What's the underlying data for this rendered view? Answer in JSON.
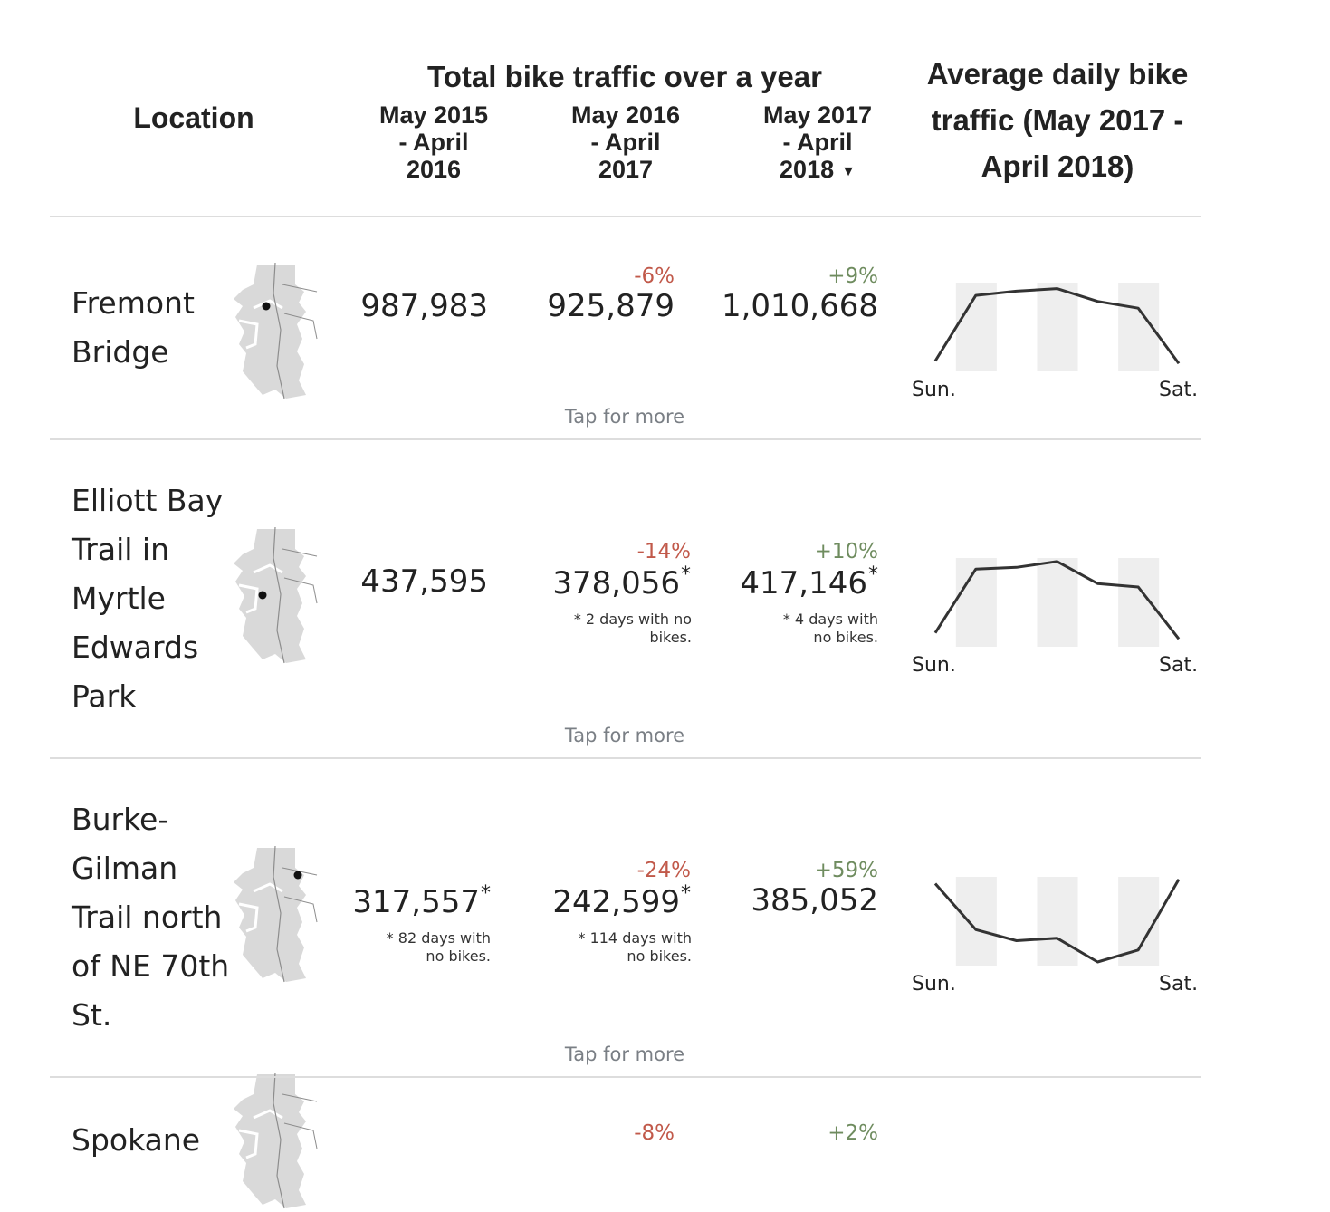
{
  "header": {
    "location": "Location",
    "total_title": "Total bike traffic over a year",
    "years": [
      [
        "May 2015",
        "- April",
        "2016"
      ],
      [
        "May 2016",
        "- April",
        "2017"
      ],
      [
        "May 2017",
        "- April",
        "2018"
      ]
    ],
    "sort_indicator": "▼",
    "avg_title": [
      "Average daily bike",
      "traffic (May 2017 -",
      "April 2018)"
    ]
  },
  "colors": {
    "negative": "#c1594a",
    "positive": "#6f8c5f",
    "rule": "#dddddd",
    "map_fill": "#d9d9d9"
  },
  "rows": [
    {
      "location_lines": [
        "Fremont",
        "Bridge"
      ],
      "y1": {
        "value": "987,983",
        "asterisk": "",
        "note": []
      },
      "y2": {
        "change": "-6%",
        "value": "925,879",
        "asterisk": "",
        "note": []
      },
      "y3": {
        "change": "+9%",
        "value": "1,010,668",
        "asterisk": "",
        "note": []
      },
      "tap": "Tap for more",
      "daily": [
        8,
        85,
        90,
        93,
        78,
        70,
        5
      ],
      "day_start": "Sun.",
      "day_end": "Sat."
    },
    {
      "location_lines": [
        "Elliott Bay",
        "Trail in",
        "Myrtle",
        "Edwards",
        "Park"
      ],
      "y1": {
        "value": "437,595",
        "asterisk": "",
        "note": []
      },
      "y2": {
        "change": "-14%",
        "value": "378,056",
        "asterisk": "*",
        "note": [
          "* 2 days with no",
          "bikes."
        ]
      },
      "y3": {
        "change": "+10%",
        "value": "417,146",
        "asterisk": "*",
        "note": [
          "* 4 days with",
          "no bikes."
        ]
      },
      "tap": "Tap for more",
      "daily": [
        12,
        87,
        89,
        96,
        70,
        66,
        5
      ],
      "day_start": "Sun.",
      "day_end": "Sat."
    },
    {
      "location_lines": [
        "Burke-",
        "Gilman",
        "Trail north",
        "of NE 70th",
        "St."
      ],
      "y1": {
        "value": "317,557",
        "asterisk": "*",
        "note": [
          "* 82 days with",
          "no bikes."
        ]
      },
      "y2": {
        "change": "-24%",
        "value": "242,599",
        "asterisk": "*",
        "note": [
          "* 114 days with",
          "no bikes."
        ]
      },
      "y3": {
        "change": "+59%",
        "value": "385,052",
        "asterisk": "",
        "note": []
      },
      "tap": "Tap for more",
      "daily": [
        92,
        38,
        25,
        28,
        0,
        14,
        97
      ],
      "day_start": "Sun.",
      "day_end": "Sat."
    },
    {
      "location_lines": [
        "Spokane"
      ],
      "y1": {
        "value": "",
        "asterisk": "",
        "note": []
      },
      "y2": {
        "change": "-8%",
        "value": "",
        "asterisk": "",
        "note": []
      },
      "y3": {
        "change": "+2%",
        "value": "",
        "asterisk": "",
        "note": []
      },
      "tap": "",
      "daily": [],
      "day_start": "",
      "day_end": ""
    }
  ]
}
